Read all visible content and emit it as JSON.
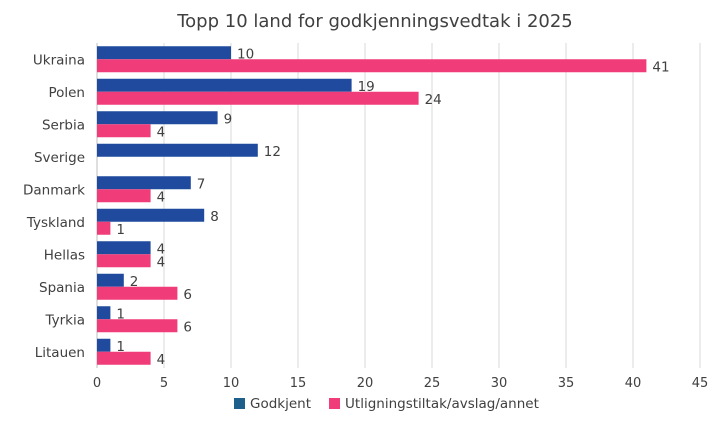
{
  "chart_data": {
    "type": "bar",
    "orientation": "horizontal",
    "title": "Topp 10 land for godkjenningsvedtak i 2025",
    "categories": [
      "Ukraina",
      "Polen",
      "Serbia",
      "Sverige",
      "Danmark",
      "Tyskland",
      "Hellas",
      "Spania",
      "Tyrkia",
      "Litauen"
    ],
    "series": [
      {
        "name": "Godkjent",
        "color": "#1f4a9e",
        "legend_color": "#1f5f8b",
        "values": [
          10,
          19,
          9,
          12,
          7,
          8,
          4,
          2,
          1,
          1
        ]
      },
      {
        "name": "Utligningstiltak/avslag/annet",
        "color": "#f03c78",
        "legend_color": "#f03c78",
        "values": [
          41,
          24,
          4,
          null,
          4,
          1,
          4,
          6,
          6,
          4
        ]
      }
    ],
    "xlim": [
      0,
      45
    ],
    "xticks": [
      0,
      5,
      10,
      15,
      20,
      25,
      30,
      35,
      40,
      45
    ],
    "grid": true,
    "legend": "bottom",
    "data_labels": true
  }
}
